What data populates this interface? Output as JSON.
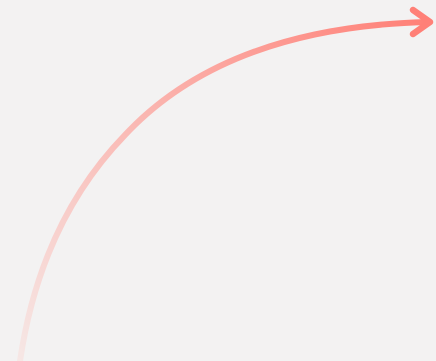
{
  "graphic": {
    "icon": "curved-arrow-icon",
    "direction": "right",
    "colors": {
      "background": "#f3f2f2",
      "arrow_start": "#f6e7e5",
      "arrow_end": "#ff8077"
    }
  }
}
